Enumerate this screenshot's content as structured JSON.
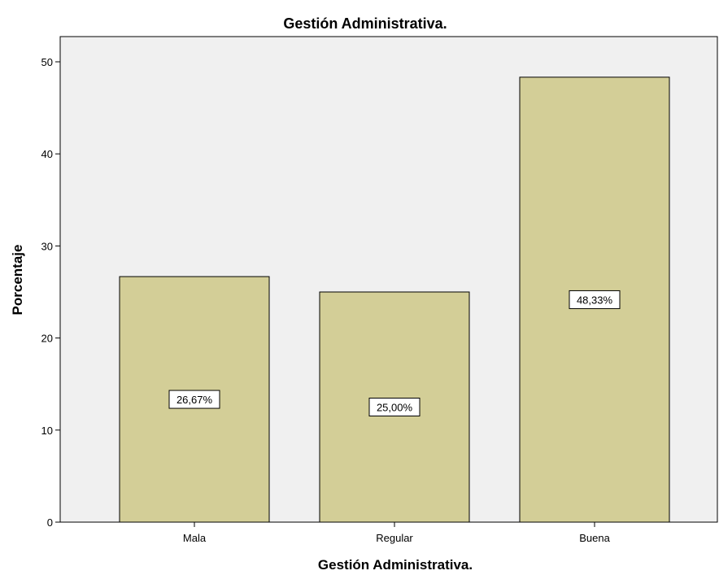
{
  "chart_data": {
    "type": "bar",
    "title": "Gestión Administrativa.",
    "xlabel": "Gestión Administrativa.",
    "ylabel": "Porcentaje",
    "categories": [
      "Mala",
      "Regular",
      "Buena"
    ],
    "values": [
      26.67,
      25.0,
      48.33
    ],
    "data_labels": [
      "26,67%",
      "25,00%",
      "48,33%"
    ],
    "ylim": [
      0,
      53
    ],
    "yticks": [
      0,
      10,
      20,
      30,
      40,
      50
    ],
    "grid": false,
    "legend": "none",
    "colors": {
      "bar_fill": "#d3ce97",
      "bar_stroke": "#000000",
      "plot_background": "#f0f0f0",
      "label_background": "#ffffff"
    }
  }
}
